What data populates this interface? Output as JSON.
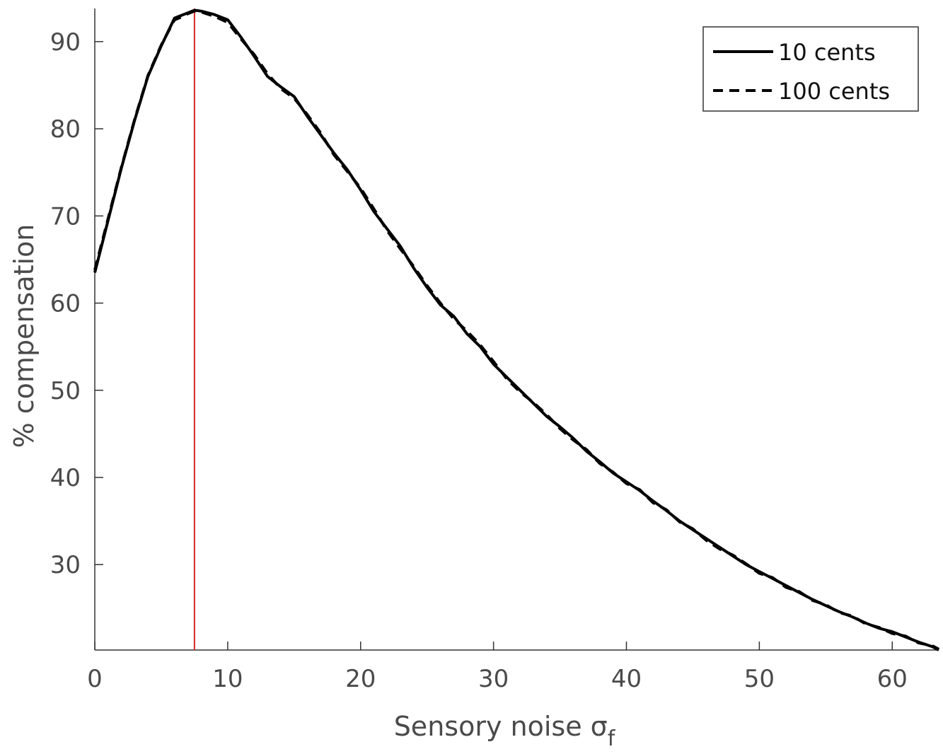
{
  "chart_data": {
    "type": "line",
    "xlabel": "Sensory noise σ",
    "xlabel_subscript": "f",
    "ylabel": "% compensation",
    "xlim": [
      0,
      63.5
    ],
    "ylim": [
      20.2,
      93.8
    ],
    "xticks": [
      0,
      10,
      20,
      30,
      40,
      50,
      60
    ],
    "yticks": [
      30,
      40,
      50,
      60,
      70,
      80,
      90
    ],
    "grid": false,
    "legend_placement": "top-right",
    "reference_line": {
      "x": 7.5,
      "color": "#d62728"
    },
    "series": [
      {
        "name": "10 cents",
        "style": "solid",
        "color": "#000000",
        "x": [
          0,
          1,
          2,
          3,
          4,
          5,
          6,
          6.5,
          7,
          7.5,
          8,
          9,
          10,
          11,
          12,
          13,
          14,
          15,
          16,
          17,
          18,
          19,
          20,
          21,
          22,
          23,
          24,
          25,
          26,
          27,
          28,
          29,
          30,
          31,
          32,
          33,
          34,
          35,
          36,
          37,
          38,
          39,
          40,
          41,
          42,
          43,
          44,
          45,
          46,
          47,
          48,
          49,
          50,
          51,
          52,
          53,
          54,
          55,
          56,
          57,
          58,
          59,
          60,
          61,
          62,
          63,
          63.5
        ],
        "y": [
          63.5,
          69.5,
          75.5,
          81.0,
          86.0,
          89.5,
          92.7,
          93.0,
          93.3,
          93.6,
          93.5,
          93.1,
          92.5,
          90.5,
          88.3,
          86.0,
          84.8,
          83.7,
          81.4,
          79.3,
          77.2,
          75.3,
          73.0,
          70.5,
          68.5,
          66.5,
          64.0,
          61.8,
          59.8,
          58.5,
          56.5,
          55.0,
          53.0,
          51.5,
          50.0,
          48.5,
          47.0,
          45.8,
          44.5,
          43.0,
          41.8,
          40.5,
          39.5,
          38.5,
          37.3,
          36.2,
          35.0,
          34.0,
          33.0,
          32.0,
          31.0,
          30.0,
          29.2,
          28.4,
          27.6,
          26.8,
          26.0,
          25.3,
          24.6,
          24.0,
          23.3,
          22.7,
          22.3,
          21.7,
          21.1,
          20.6,
          20.2
        ]
      },
      {
        "name": "100 cents",
        "style": "dashed",
        "color": "#000000",
        "x": [
          0,
          1,
          2,
          3,
          4,
          5,
          6,
          6.5,
          7,
          7.5,
          8,
          9,
          10,
          11,
          12,
          13,
          14,
          15,
          16,
          17,
          18,
          19,
          20,
          21,
          22,
          23,
          24,
          25,
          26,
          27,
          28,
          29,
          30,
          31,
          32,
          33,
          34,
          35,
          36,
          37,
          38,
          39,
          40,
          41,
          42,
          43,
          44,
          45,
          46,
          47,
          48,
          49,
          50,
          51,
          52,
          53,
          54,
          55,
          56,
          57,
          58,
          59,
          60,
          61,
          62,
          63,
          63.5
        ],
        "y": [
          63.8,
          69.7,
          75.6,
          81.1,
          86.1,
          89.6,
          92.5,
          92.8,
          93.2,
          93.5,
          93.4,
          92.9,
          92.2,
          90.3,
          88.5,
          86.3,
          84.6,
          83.5,
          81.6,
          79.5,
          77.0,
          75.1,
          73.2,
          70.8,
          68.3,
          66.2,
          64.2,
          62.0,
          60.0,
          58.2,
          56.8,
          55.2,
          53.3,
          51.3,
          49.8,
          48.6,
          47.2,
          45.6,
          44.3,
          43.2,
          41.6,
          40.6,
          39.3,
          38.6,
          37.1,
          36.3,
          34.9,
          34.1,
          32.8,
          31.8,
          31.1,
          30.1,
          29.0,
          28.5,
          27.4,
          26.9,
          25.9,
          25.4,
          24.5,
          24.1,
          23.2,
          22.8,
          22.1,
          21.8,
          21.0,
          20.7,
          20.3
        ]
      }
    ]
  }
}
